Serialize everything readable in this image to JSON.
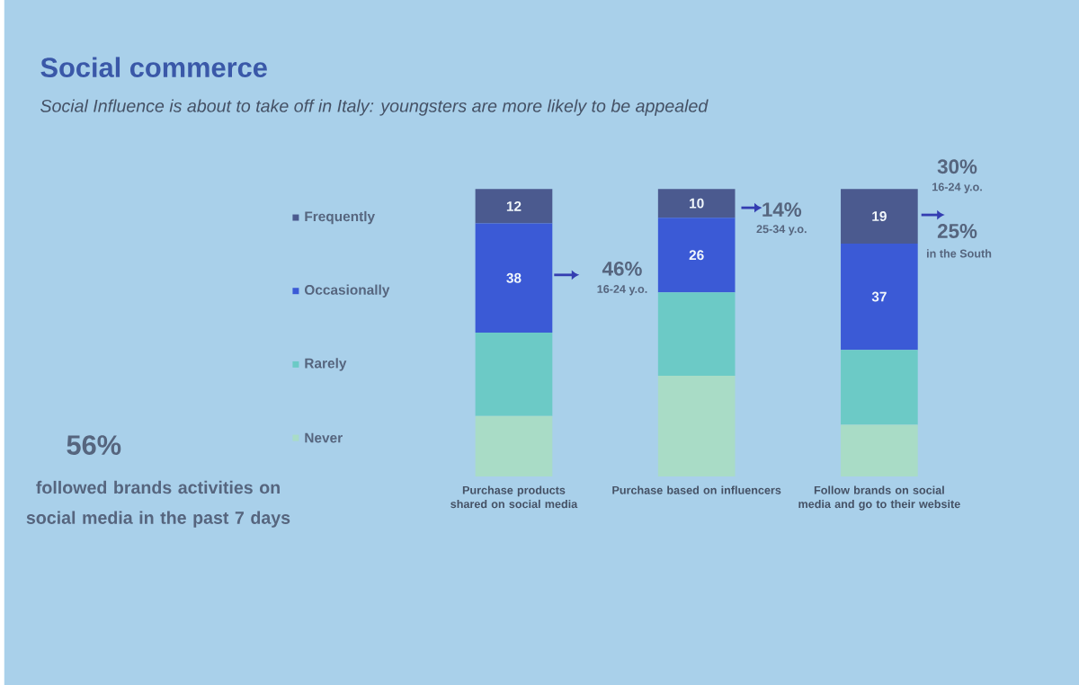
{
  "chart_data": {
    "type": "bar",
    "stacked": true,
    "title": "Social commerce",
    "subtitle": "Social Influence is about to take off in Italy: youngsters are more likely to be appealed",
    "categories": [
      "Purchase products  shared on social media",
      "Purchase based on influencers",
      "Follow brands on social media and go to their website"
    ],
    "series": [
      {
        "name": "Never",
        "color": "#a9dcc6",
        "values": [
          21,
          35,
          18
        ]
      },
      {
        "name": "Rarely",
        "color": "#6ccac6",
        "values": [
          29,
          29,
          26
        ]
      },
      {
        "name": "Occasionally",
        "color": "#3b5ad6",
        "values": [
          38,
          26,
          37
        ],
        "value_labels": [
          "38",
          "26",
          "37"
        ]
      },
      {
        "name": "Frequently",
        "color": "#4b5a8f",
        "values": [
          12,
          10,
          19
        ],
        "value_labels": [
          "12",
          "10",
          "19"
        ]
      }
    ],
    "legend": "left",
    "tick_labels": "x",
    "annotations": [
      "46%",
      "16-24 y.o.",
      "14%",
      "25-34 y.o.",
      "30%",
      "16-24 y.o.",
      "25%",
      "in the South",
      "56%",
      "followed brands activities on social media in the past 7 days"
    ]
  }
}
